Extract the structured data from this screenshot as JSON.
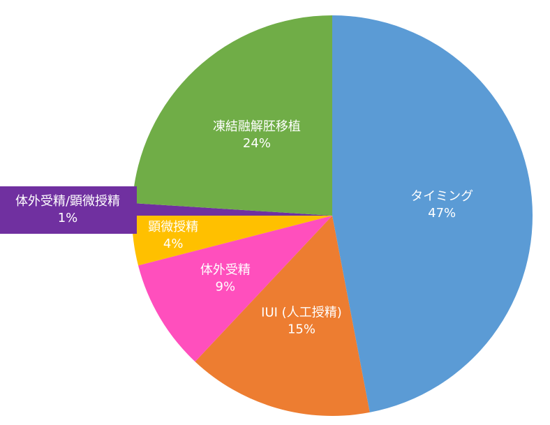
{
  "chart_data": {
    "type": "pie",
    "categories": [
      "タイミング",
      "IUI (人工授精)",
      "体外受精",
      "顕微授精",
      "体外受精/顕微授精",
      "凍結融解胚移植"
    ],
    "values": [
      47,
      15,
      9,
      4,
      1,
      24
    ],
    "value_labels": [
      "47%",
      "15%",
      "9%",
      "4%",
      "1%",
      "24%"
    ],
    "colors": [
      "#5b9bd5",
      "#ed7d31",
      "#ff4fbd",
      "#ffc000",
      "#7030a0",
      "#70ad47"
    ]
  }
}
